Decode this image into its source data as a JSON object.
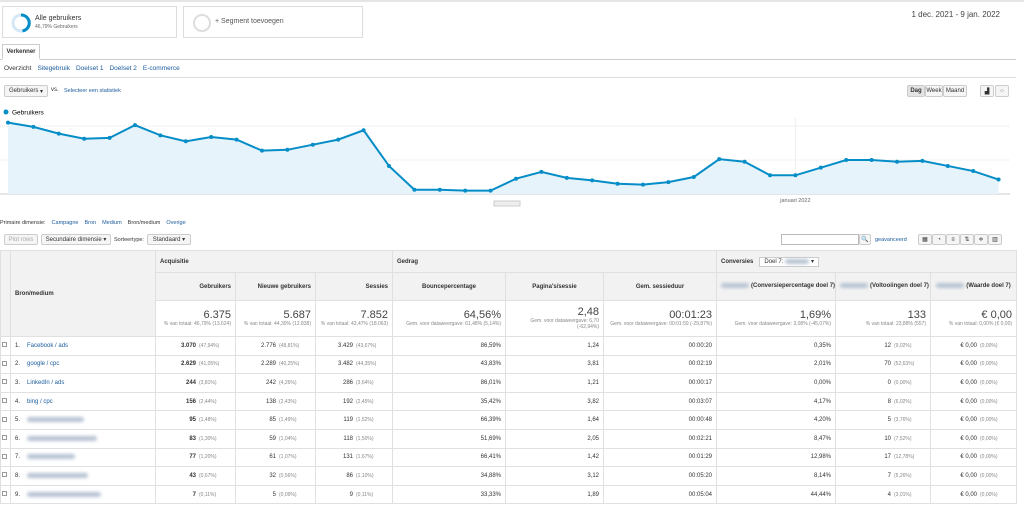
{
  "segments": {
    "active": {
      "name": "Alle gebruikers",
      "detail": "46,79% Gebruikers"
    },
    "add": "+ Segment toevoegen"
  },
  "date_range": "1 dec. 2021 - 9 jan. 2022",
  "tab": "Verkenner",
  "subtabs": [
    "Overzicht",
    "Sitegebruik",
    "Doelset 1",
    "Doelset 2",
    "E-commerce"
  ],
  "controls": {
    "metric": "Gebruikers",
    "vs": "vs.",
    "select": "Selecteer een statistiek",
    "periods": [
      "Dag",
      "Week",
      "Maand"
    ]
  },
  "chart_data": {
    "type": "line",
    "categories": [
      null,
      null,
      null,
      null,
      null,
      null,
      null,
      null,
      null,
      null,
      null,
      null,
      null,
      null,
      null,
      null,
      null,
      null,
      null,
      null,
      null,
      null,
      null,
      null,
      null,
      null,
      null,
      null,
      null,
      null,
      null,
      "januari 2022",
      null,
      null,
      null,
      null,
      null,
      null,
      null,
      null
    ],
    "series": [
      {
        "name": "Gebruikers",
        "color": "#058dc7",
        "values": [
          420,
          395,
          355,
          325,
          330,
          405,
          345,
          310,
          335,
          320,
          255,
          260,
          290,
          320,
          375,
          165,
          25,
          25,
          20,
          20,
          90,
          130,
          95,
          80,
          60,
          55,
          70,
          100,
          205,
          190,
          110,
          110,
          155,
          200,
          200,
          190,
          195,
          165,
          135,
          85
        ]
      }
    ],
    "ylim": [
      0,
      450
    ],
    "yticks": [
      200,
      400
    ],
    "grid": true
  },
  "dimensions": {
    "label": "Primaire dimensie:",
    "options": [
      "Campagne",
      "Bron",
      "Medium",
      "Bron/medium",
      "Overige"
    ]
  },
  "toolbar": {
    "plot": "Plot rows",
    "secondary": "Secundaire dimensie",
    "sort_label": "Sorteertype:",
    "sort": "Standaard",
    "advanced": "geavanceerd"
  },
  "table": {
    "groups": [
      "Acquisitie",
      "Gedrag",
      "Conversies"
    ],
    "goal": "Doel 7:",
    "columns": [
      "Bron/medium",
      "Gebruikers",
      "Nieuwe gebruikers",
      "Sessies",
      "Bouncepercentage",
      "Pagina's/sessie",
      "Gem. sessieduur",
      "(Conversiepercentage doel 7)",
      "(Voltooiingen doel 7)",
      "(Waarde doel 7)"
    ],
    "totals": [
      [
        "6.375",
        "% van totaal: 46,79% (13.624)"
      ],
      [
        "5.687",
        "% van totaal: 44,30% (12.838)"
      ],
      [
        "7.852",
        "% van totaal: 43,47% (18.063)"
      ],
      [
        "64,56%",
        "Gem. voor dataweergave: 61,48% (5,14%)"
      ],
      [
        "2,48",
        "Gem. voor dataweergave: 6,70 (-62,94%)"
      ],
      [
        "00:01:23",
        "Gem. voor dataweergave: 00:01:59 (-29,87%)"
      ],
      [
        "1,69%",
        "Gem. voor dataweergave: 3,08% (-45,07%)"
      ],
      [
        "133",
        "% van totaal: 23,88% (557)"
      ],
      [
        "€ 0,00",
        "% van totaal: 0,00% (€ 0,00)"
      ]
    ],
    "rows": [
      {
        "rank": "1.",
        "source": "Facebook / ads",
        "cells": [
          [
            "3.070",
            "(47,94%)"
          ],
          [
            "2.776",
            "(48,81%)"
          ],
          [
            "3.429",
            "(43,67%)"
          ],
          [
            "86,59%"
          ],
          [
            "1,24"
          ],
          [
            "00:00:20"
          ],
          [
            "0,35%"
          ],
          [
            "12",
            "(9,02%)"
          ],
          [
            "€ 0,00",
            "(0,00%)"
          ]
        ]
      },
      {
        "rank": "2.",
        "source": "google / cpc",
        "cells": [
          [
            "2.629",
            "(41,05%)"
          ],
          [
            "2.289",
            "(40,25%)"
          ],
          [
            "3.482",
            "(44,35%)"
          ],
          [
            "43,83%"
          ],
          [
            "3,81"
          ],
          [
            "00:02:19"
          ],
          [
            "2,01%"
          ],
          [
            "70",
            "(52,63%)"
          ],
          [
            "€ 0,00",
            "(0,00%)"
          ]
        ]
      },
      {
        "rank": "3.",
        "source": "LinkedIn / ads",
        "cells": [
          [
            "244",
            "(3,81%)"
          ],
          [
            "242",
            "(4,26%)"
          ],
          [
            "286",
            "(3,64%)"
          ],
          [
            "86,01%"
          ],
          [
            "1,21"
          ],
          [
            "00:00:17"
          ],
          [
            "0,00%"
          ],
          [
            "0",
            "(0,00%)"
          ],
          [
            "€ 0,00",
            "(0,00%)"
          ]
        ]
      },
      {
        "rank": "4.",
        "source": "bing / cpc",
        "cells": [
          [
            "156",
            "(2,44%)"
          ],
          [
            "138",
            "(2,43%)"
          ],
          [
            "192",
            "(2,45%)"
          ],
          [
            "35,42%"
          ],
          [
            "3,82"
          ],
          [
            "00:03:07"
          ],
          [
            "4,17%"
          ],
          [
            "8",
            "(6,02%)"
          ],
          [
            "€ 0,00",
            "(0,00%)"
          ]
        ]
      },
      {
        "rank": "5.",
        "cells": [
          [
            "95",
            "(1,48%)"
          ],
          [
            "85",
            "(1,49%)"
          ],
          [
            "119",
            "(1,52%)"
          ],
          [
            "66,39%"
          ],
          [
            "1,64"
          ],
          [
            "00:00:48"
          ],
          [
            "4,20%"
          ],
          [
            "5",
            "(3,76%)"
          ],
          [
            "€ 0,00",
            "(0,00%)"
          ]
        ]
      },
      {
        "rank": "6.",
        "cells": [
          [
            "83",
            "(1,30%)"
          ],
          [
            "59",
            "(1,04%)"
          ],
          [
            "118",
            "(1,50%)"
          ],
          [
            "51,69%"
          ],
          [
            "2,05"
          ],
          [
            "00:02:21"
          ],
          [
            "8,47%"
          ],
          [
            "10",
            "(7,52%)"
          ],
          [
            "€ 0,00",
            "(0,00%)"
          ]
        ]
      },
      {
        "rank": "7.",
        "cells": [
          [
            "77",
            "(1,20%)"
          ],
          [
            "61",
            "(1,07%)"
          ],
          [
            "131",
            "(1,67%)"
          ],
          [
            "66,41%"
          ],
          [
            "1,42"
          ],
          [
            "00:01:29"
          ],
          [
            "12,98%"
          ],
          [
            "17",
            "(12,78%)"
          ],
          [
            "€ 0,00",
            "(0,00%)"
          ]
        ]
      },
      {
        "rank": "8.",
        "cells": [
          [
            "43",
            "(0,67%)"
          ],
          [
            "32",
            "(0,56%)"
          ],
          [
            "86",
            "(1,10%)"
          ],
          [
            "34,88%"
          ],
          [
            "3,12"
          ],
          [
            "00:05:20"
          ],
          [
            "8,14%"
          ],
          [
            "7",
            "(5,26%)"
          ],
          [
            "€ 0,00",
            "(0,00%)"
          ]
        ]
      },
      {
        "rank": "9.",
        "cells": [
          [
            "7",
            "(0,11%)"
          ],
          [
            "5",
            "(0,09%)"
          ],
          [
            "9",
            "(0,11%)"
          ],
          [
            "33,33%"
          ],
          [
            "1,89"
          ],
          [
            "00:05:04"
          ],
          [
            "44,44%"
          ],
          [
            "4",
            "(3,01%)"
          ],
          [
            "€ 0,00",
            "(0,00%)"
          ]
        ]
      }
    ]
  }
}
